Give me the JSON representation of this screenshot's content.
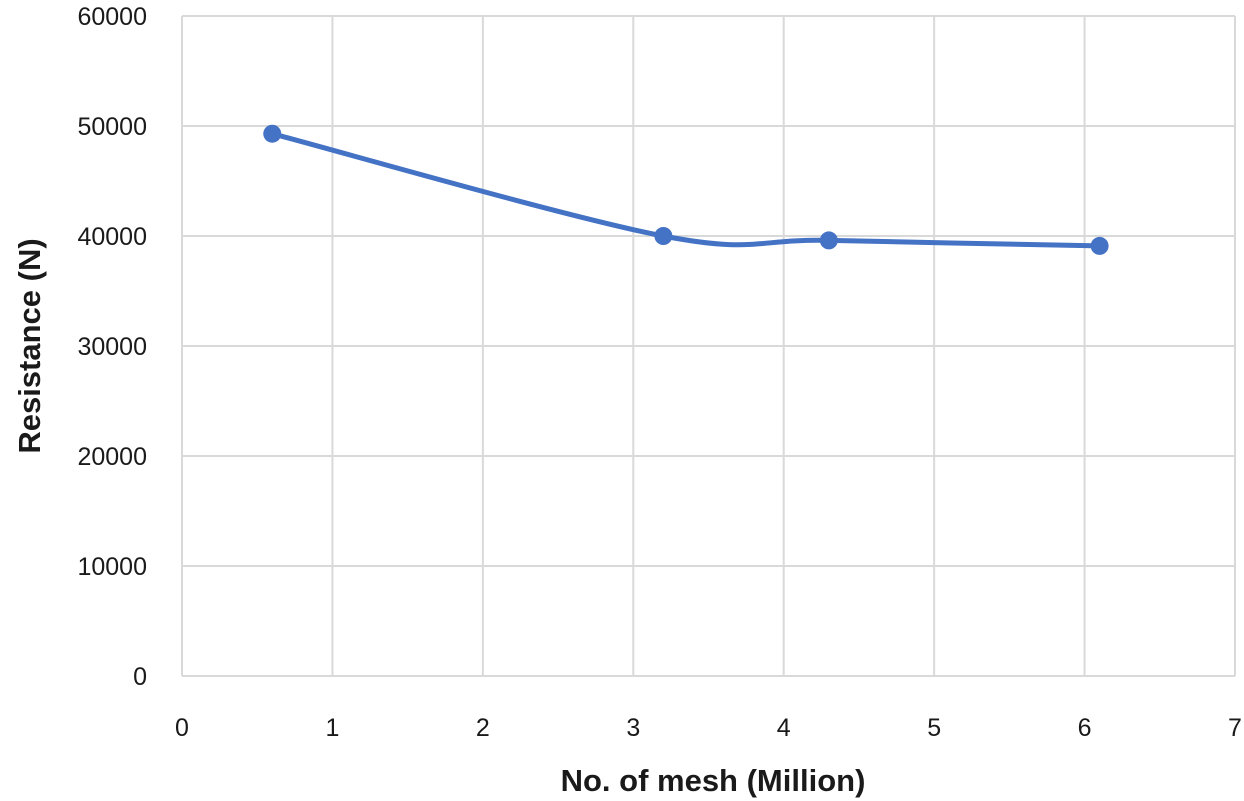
{
  "chart_data": {
    "type": "line",
    "xlabel": "No. of mesh (Million)",
    "ylabel": "Resistance (N)",
    "xlim": [
      0,
      7
    ],
    "ylim": [
      0,
      60000
    ],
    "x_ticks": [
      "0",
      "1",
      "2",
      "3",
      "4",
      "5",
      "6",
      "7"
    ],
    "y_ticks": [
      "0",
      "10000",
      "20000",
      "30000",
      "40000",
      "50000",
      "60000"
    ],
    "grid": true,
    "smoothed": true,
    "series": [
      {
        "color": "#4472c4",
        "points": [
          {
            "x": 0.6,
            "y": 49300
          },
          {
            "x": 3.2,
            "y": 40000
          },
          {
            "x": 4.3,
            "y": 39600
          },
          {
            "x": 6.1,
            "y": 39100
          }
        ]
      }
    ]
  }
}
